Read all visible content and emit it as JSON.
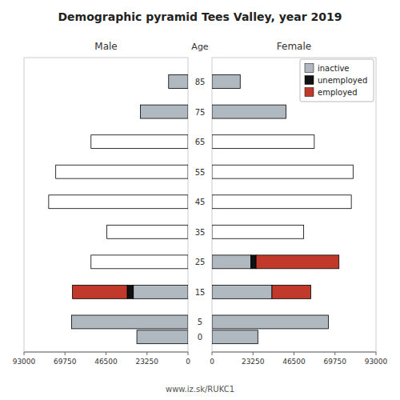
{
  "chart_data": {
    "type": "bar",
    "orientation": "horizontal",
    "stacked": true,
    "title": "Demographic pyramid Tees Valley, year 2019",
    "ylabel": "Age",
    "annotations": [
      "www.iz.sk/RUKC1"
    ],
    "legend": "upper right",
    "y": [
      85,
      75,
      65,
      55,
      45,
      35,
      25,
      15,
      5,
      0
    ],
    "ylim": [
      -5,
      93
    ],
    "yticks": [
      85,
      75,
      65,
      55,
      45,
      35,
      25,
      15,
      5,
      0
    ],
    "xlim": [
      0,
      93000
    ],
    "xticks": [
      0,
      23250,
      46500,
      69750,
      93000
    ],
    "panels": [
      {
        "title": "Male",
        "series": [
          {
            "name": "inactive",
            "color": "#b0b8c0",
            "values": [
              11000,
              27000,
              0,
              0,
              0,
              0,
              0,
              31000,
              66000,
              29000
            ]
          },
          {
            "name": "unemployed",
            "color": "#111111",
            "values": [
              0,
              0,
              0,
              0,
              0,
              0,
              0,
              3500,
              0,
              0
            ]
          },
          {
            "name": "employed",
            "color": "#c0392b",
            "values": [
              0,
              0,
              0,
              0,
              0,
              0,
              0,
              31000,
              0,
              0
            ]
          },
          {
            "color": "#ffffff",
            "values": [
              0,
              0,
              55000,
              75000,
              79000,
              46000,
              55000,
              0,
              0,
              0
            ]
          }
        ]
      },
      {
        "title": "Female",
        "series": [
          {
            "name": "inactive",
            "color": "#b0b8c0",
            "values": [
              16000,
              42000,
              0,
              0,
              0,
              0,
              22000,
              34000,
              66000,
              26000
            ]
          },
          {
            "name": "unemployed",
            "color": "#111111",
            "values": [
              0,
              0,
              0,
              0,
              0,
              0,
              3000,
              0,
              0,
              0
            ]
          },
          {
            "name": "employed",
            "color": "#c0392b",
            "values": [
              0,
              0,
              0,
              0,
              0,
              0,
              47000,
              22000,
              0,
              0
            ]
          },
          {
            "color": "#ffffff",
            "values": [
              0,
              0,
              58000,
              80000,
              79000,
              52000,
              0,
              0,
              0,
              0
            ]
          }
        ]
      }
    ]
  }
}
